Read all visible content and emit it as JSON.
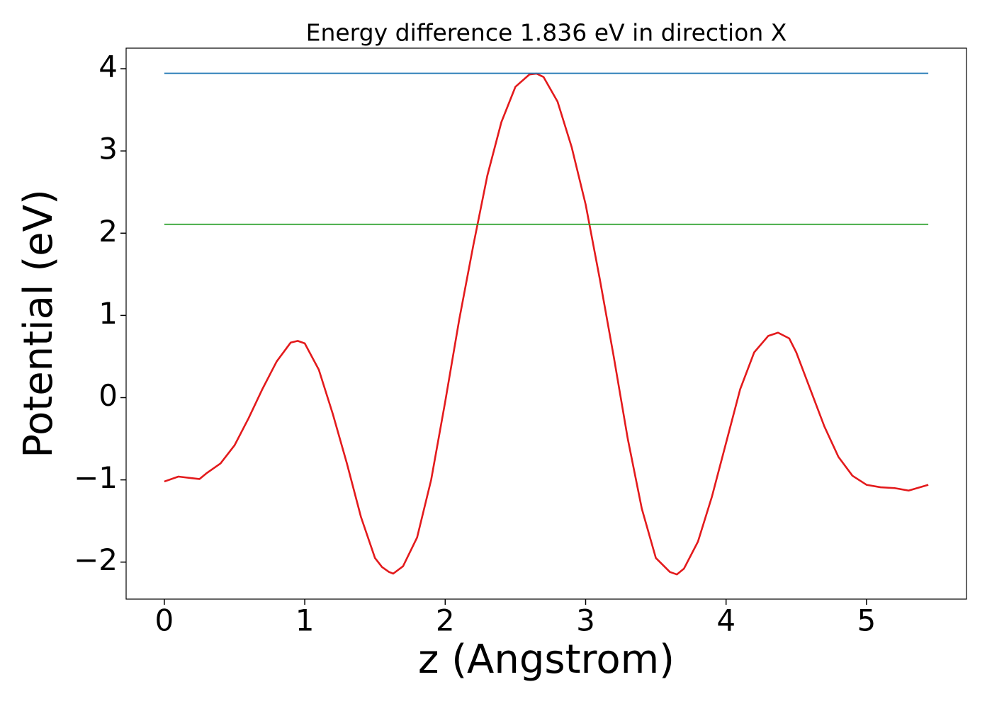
{
  "chart_data": {
    "type": "line",
    "title": "Energy difference 1.836 eV in direction X",
    "xlabel": "z (Angstrom)",
    "ylabel": "Potential (eV)",
    "xlim": [
      -0.272,
      5.712
    ],
    "ylim": [
      -2.45,
      4.25
    ],
    "xticks": [
      0,
      1,
      2,
      3,
      4,
      5
    ],
    "yticks": [
      {
        "value": -2,
        "label": "−2"
      },
      {
        "value": -1,
        "label": "−1"
      },
      0,
      1,
      2,
      3,
      4
    ],
    "series": [
      {
        "color": "#e31a1c",
        "x": [
          0,
          0.1,
          0.2,
          0.25,
          0.3,
          0.4,
          0.5,
          0.6,
          0.7,
          0.8,
          0.9,
          0.95,
          1.0,
          1.1,
          1.2,
          1.3,
          1.4,
          1.5,
          1.55,
          1.6,
          1.63,
          1.7,
          1.8,
          1.9,
          2.0,
          2.1,
          2.2,
          2.3,
          2.4,
          2.5,
          2.6,
          2.65,
          2.7,
          2.8,
          2.9,
          3.0,
          3.1,
          3.2,
          3.3,
          3.4,
          3.5,
          3.6,
          3.65,
          3.7,
          3.8,
          3.9,
          4.0,
          4.1,
          4.2,
          4.3,
          4.37,
          4.45,
          4.5,
          4.6,
          4.7,
          4.8,
          4.9,
          5.0,
          5.1,
          5.2,
          5.3,
          5.44
        ],
        "values": [
          -1.02,
          -0.96,
          -0.98,
          -0.99,
          -0.92,
          -0.8,
          -0.58,
          -0.25,
          0.11,
          0.44,
          0.67,
          0.69,
          0.66,
          0.34,
          -0.2,
          -0.8,
          -1.45,
          -1.95,
          -2.06,
          -2.12,
          -2.14,
          -2.05,
          -1.7,
          -1.0,
          -0.05,
          0.95,
          1.85,
          2.7,
          3.35,
          3.78,
          3.93,
          3.94,
          3.9,
          3.6,
          3.05,
          2.35,
          1.45,
          0.5,
          -0.5,
          -1.35,
          -1.95,
          -2.12,
          -2.15,
          -2.08,
          -1.75,
          -1.2,
          -0.55,
          0.1,
          0.55,
          0.75,
          0.79,
          0.72,
          0.55,
          0.1,
          -0.35,
          -0.72,
          -0.95,
          -1.06,
          -1.09,
          -1.1,
          -1.13,
          -1.06
        ]
      },
      {
        "color": "#1f77b4",
        "x": [
          0,
          5.44
        ],
        "values": [
          3.944,
          3.944
        ]
      },
      {
        "color": "#2ca02c",
        "x": [
          0,
          5.44
        ],
        "values": [
          2.108,
          2.108
        ]
      }
    ]
  }
}
